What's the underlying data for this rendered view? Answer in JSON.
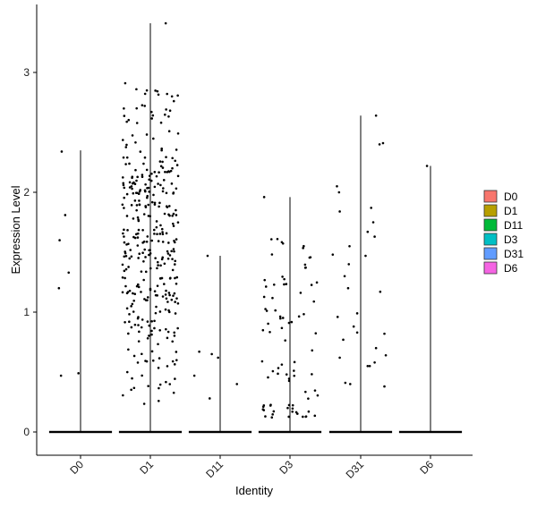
{
  "chart_data": {
    "type": "violin-jitter",
    "xlabel": "Identity",
    "ylabel": "Expression Level",
    "ylim": [
      -0.2,
      3.55
    ],
    "yticks": [
      0,
      1,
      2,
      3
    ],
    "grid": false,
    "legend_placement": "right",
    "categories": [
      "D0",
      "D1",
      "D11",
      "D3",
      "D31",
      "D6"
    ],
    "legend": [
      {
        "label": "D0",
        "color": "#F8766D"
      },
      {
        "label": "D1",
        "color": "#B79F00"
      },
      {
        "label": "D11",
        "color": "#00BA38"
      },
      {
        "label": "D3",
        "color": "#00BFC4"
      },
      {
        "label": "D31",
        "color": "#619CFF"
      },
      {
        "label": "D6",
        "color": "#F564E3"
      }
    ],
    "series": [
      {
        "category": "D0",
        "max": 2.35,
        "points": [
          [
            -0.27,
            2.34
          ],
          [
            -0.22,
            1.81
          ],
          [
            -0.3,
            1.6
          ],
          [
            -0.17,
            1.33
          ],
          [
            -0.31,
            1.2
          ],
          [
            -0.28,
            0.47
          ],
          [
            -0.03,
            0.49
          ]
        ]
      },
      {
        "category": "D1",
        "max": 3.41,
        "n_points": 350,
        "range": [
          0.2,
          2.92
        ],
        "points": [
          [
            0.22,
            3.41
          ],
          [
            -0.36,
            2.91
          ],
          [
            -0.2,
            2.86
          ],
          [
            -0.05,
            2.85
          ]
        ]
      },
      {
        "category": "D11",
        "max": 1.47,
        "points": [
          [
            -0.18,
            1.47
          ],
          [
            -0.3,
            0.67
          ],
          [
            -0.12,
            0.65
          ],
          [
            -0.03,
            0.62
          ],
          [
            -0.37,
            0.47
          ],
          [
            -0.15,
            0.28
          ],
          [
            0.24,
            0.4
          ]
        ]
      },
      {
        "category": "D3",
        "max": 1.96,
        "n_points": 80,
        "range": [
          0.12,
          1.61
        ],
        "points": [
          [
            -0.37,
            1.96
          ],
          [
            -0.18,
            1.61
          ],
          [
            0.22,
            1.37
          ]
        ]
      },
      {
        "category": "D31",
        "max": 2.64,
        "points": [
          [
            0.22,
            2.64
          ],
          [
            0.32,
            2.41
          ],
          [
            0.27,
            2.4
          ],
          [
            -0.34,
            2.05
          ],
          [
            -0.31,
            2.0
          ],
          [
            -0.3,
            1.84
          ],
          [
            0.15,
            1.87
          ],
          [
            0.18,
            1.75
          ],
          [
            0.1,
            1.67
          ],
          [
            0.2,
            1.63
          ],
          [
            -0.16,
            1.55
          ],
          [
            -0.4,
            1.48
          ],
          [
            0.07,
            1.47
          ],
          [
            -0.17,
            1.4
          ],
          [
            -0.23,
            1.3
          ],
          [
            -0.18,
            1.2
          ],
          [
            0.28,
            1.17
          ],
          [
            -0.05,
            0.99
          ],
          [
            -0.33,
            0.96
          ],
          [
            -0.1,
            0.88
          ],
          [
            -0.05,
            0.83
          ],
          [
            0.34,
            0.82
          ],
          [
            -0.25,
            0.77
          ],
          [
            0.22,
            0.7
          ],
          [
            0.36,
            0.64
          ],
          [
            -0.3,
            0.62
          ],
          [
            0.2,
            0.58
          ],
          [
            0.1,
            0.55
          ],
          [
            0.13,
            0.55
          ],
          [
            -0.22,
            0.41
          ],
          [
            -0.15,
            0.4
          ],
          [
            0.34,
            0.38
          ]
        ]
      },
      {
        "category": "D6",
        "max": 2.22,
        "points": [
          [
            -0.05,
            2.22
          ]
        ]
      }
    ]
  }
}
